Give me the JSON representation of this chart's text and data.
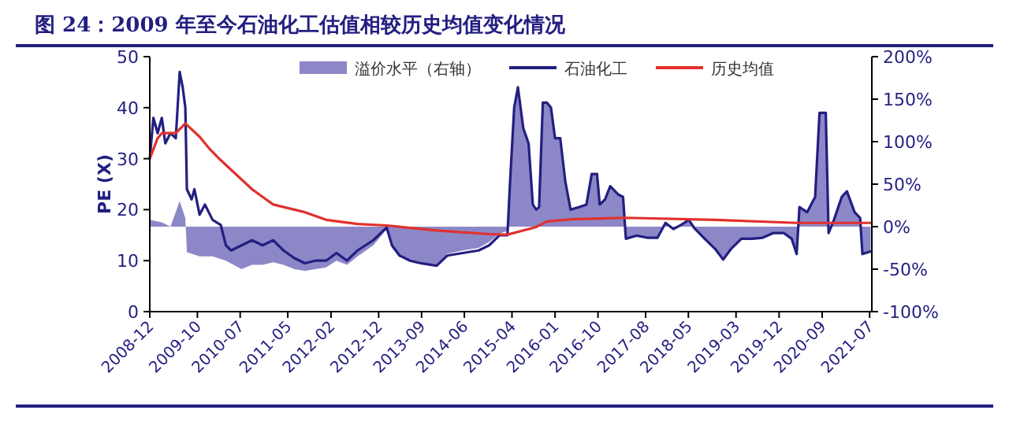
{
  "chart_data": {
    "type": "line",
    "title": "图 24：2009 年至今石油化工估值相较历史均值变化情况",
    "ylabel": "PE (X)",
    "legend": "top",
    "grid": false,
    "xlim": [
      "2008-12-01",
      "2021-07-15"
    ],
    "xticks": [
      "2008-12",
      "2009-10",
      "2010-07",
      "2011-05",
      "2012-02",
      "2012-12",
      "2013-09",
      "2014-06",
      "2015-04",
      "2016-01",
      "2016-10",
      "2017-08",
      "2018-05",
      "2019-03",
      "2019-12",
      "2020-09",
      "2021-07"
    ],
    "ylim": [
      0,
      50
    ],
    "yticks": [
      0,
      10,
      20,
      30,
      40,
      50
    ],
    "y2lim": [
      -100,
      200
    ],
    "y2ticks": [
      {
        "value": -100,
        "label": "-100%"
      },
      {
        "value": -50,
        "label": "-50%"
      },
      {
        "value": 0,
        "label": "0%"
      },
      {
        "value": 50,
        "label": "50%"
      },
      {
        "value": 100,
        "label": "100%"
      },
      {
        "value": 150,
        "label": "150%"
      },
      {
        "value": 200,
        "label": "200%"
      }
    ],
    "series": [
      {
        "name": "溢价水平（右轴）",
        "type": "area",
        "axis": "y2",
        "color": "#8c88c8",
        "x": [
          "2008-12-01",
          "2009-02-16",
          "2009-04-12",
          "2009-06-10",
          "2009-07-16",
          "2009-07-26",
          "2009-10-15",
          "2010-01-06",
          "2010-04-01",
          "2010-07-10",
          "2010-09-15",
          "2010-11-21",
          "2011-01-28",
          "2011-04-04",
          "2011-06-12",
          "2011-08-18",
          "2011-10-24",
          "2012-01-01",
          "2012-03-07",
          "2012-05-13",
          "2012-07-19",
          "2012-10-28",
          "2013-01-21",
          "2013-02-24",
          "2013-04-13",
          "2013-06-19",
          "2013-08-25",
          "2013-12-06",
          "2014-02-12",
          "2014-05-22",
          "2014-08-31",
          "2014-11-06",
          "2015-01-12",
          "2015-03-03",
          "2015-03-19",
          "2015-04-15",
          "2015-05-09",
          "2015-06-12",
          "2015-07-16",
          "2015-08-12",
          "2015-09-03",
          "2015-09-21",
          "2015-10-15",
          "2015-11-09",
          "2015-12-06",
          "2016-01-01",
          "2016-02-03",
          "2016-03-06",
          "2016-04-09",
          "2016-06-01",
          "2016-07-19",
          "2016-08-22",
          "2016-09-25",
          "2016-10-12",
          "2016-11-15",
          "2016-12-18",
          "2017-02-06",
          "2017-03-10",
          "2017-03-28",
          "2017-06-03",
          "2017-08-10",
          "2017-10-16",
          "2017-12-06",
          "2018-01-25",
          "2018-03-15",
          "2018-05-04",
          "2018-06-07",
          "2018-08-13",
          "2018-10-19",
          "2018-12-09",
          "2019-01-28",
          "2019-04-04",
          "2019-06-12",
          "2019-08-18",
          "2019-10-24",
          "2020-01-01",
          "2020-02-19",
          "2020-03-22",
          "2020-04-09",
          "2020-05-28",
          "2020-07-18",
          "2020-08-15",
          "2020-09-24",
          "2020-10-12",
          "2020-11-15",
          "2021-01-04",
          "2021-02-06",
          "2021-03-27",
          "2021-05-01",
          "2021-05-16",
          "2021-07-07"
        ],
        "values": [
          8,
          5,
          0,
          30,
          10,
          -30,
          -35,
          -35,
          -40,
          -50,
          -45,
          -45,
          -42,
          -45,
          -50,
          -52,
          -50,
          -48,
          -40,
          -45,
          -35,
          -22,
          -3,
          -25,
          -35,
          -40,
          -42,
          -45,
          -32,
          -28,
          -25,
          -18,
          -8,
          -5,
          50,
          140,
          165,
          115,
          100,
          25,
          20,
          22,
          145,
          145,
          140,
          105,
          105,
          55,
          20,
          22,
          25,
          62,
          62,
          25,
          32,
          48,
          38,
          35,
          -14,
          -10,
          -12,
          -12,
          5,
          -2,
          3,
          9,
          -1,
          -14,
          -26,
          -38,
          -26,
          -14,
          -14,
          -12,
          -7,
          -7,
          -14,
          -32,
          24,
          18,
          36,
          135,
          135,
          -7,
          9,
          36,
          43,
          18,
          11,
          -32,
          -29
        ]
      },
      {
        "name": "石油化工",
        "color": "#231f80",
        "x": [
          "2008-12-01",
          "2008-12-24",
          "2009-01-20",
          "2009-02-16",
          "2009-03-10",
          "2009-04-12",
          "2009-05-16",
          "2009-06-10",
          "2009-06-29",
          "2009-07-16",
          "2009-07-26",
          "2009-08-25",
          "2009-09-12",
          "2009-10-15",
          "2009-11-18",
          "2010-01-06",
          "2010-02-27",
          "2010-04-01",
          "2010-05-04",
          "2010-07-10",
          "2010-09-15",
          "2010-11-21",
          "2011-01-28",
          "2011-04-04",
          "2011-06-12",
          "2011-08-18",
          "2011-10-24",
          "2012-01-01",
          "2012-03-07",
          "2012-05-13",
          "2012-07-19",
          "2012-10-28",
          "2013-01-21",
          "2013-02-24",
          "2013-04-13",
          "2013-06-19",
          "2013-08-25",
          "2013-12-06",
          "2014-02-12",
          "2014-05-22",
          "2014-08-31",
          "2014-11-06",
          "2015-01-12",
          "2015-03-03",
          "2015-03-19",
          "2015-04-15",
          "2015-05-09",
          "2015-06-12",
          "2015-07-16",
          "2015-08-12",
          "2015-09-03",
          "2015-09-21",
          "2015-10-15",
          "2015-11-09",
          "2015-12-06",
          "2016-01-01",
          "2016-02-03",
          "2016-03-06",
          "2016-04-09",
          "2016-06-01",
          "2016-07-19",
          "2016-08-22",
          "2016-09-25",
          "2016-10-12",
          "2016-11-15",
          "2016-12-18",
          "2017-02-06",
          "2017-03-10",
          "2017-03-28",
          "2017-06-03",
          "2017-08-10",
          "2017-10-16",
          "2017-12-06",
          "2018-01-25",
          "2018-03-15",
          "2018-05-04",
          "2018-06-07",
          "2018-08-13",
          "2018-10-19",
          "2018-12-09",
          "2019-01-28",
          "2019-04-04",
          "2019-06-12",
          "2019-08-18",
          "2019-10-24",
          "2020-01-01",
          "2020-02-19",
          "2020-03-22",
          "2020-04-09",
          "2020-05-28",
          "2020-07-18",
          "2020-08-15",
          "2020-09-24",
          "2020-10-12",
          "2020-11-15",
          "2021-01-04",
          "2021-02-06",
          "2021-03-27",
          "2021-05-01",
          "2021-05-16",
          "2021-07-07"
        ],
        "values": [
          30,
          38,
          35,
          38,
          33,
          35,
          34,
          47,
          44,
          40,
          24,
          22,
          24,
          19,
          21,
          18,
          17,
          13,
          12,
          13,
          14,
          13,
          14,
          12,
          10.5,
          9.5,
          10,
          10,
          11.5,
          10,
          12,
          14,
          16.5,
          13,
          11,
          10,
          9.5,
          9,
          11,
          11.5,
          12,
          13,
          15,
          15,
          25,
          40,
          44,
          36,
          33,
          21,
          20,
          20.5,
          41,
          41,
          40,
          34,
          34,
          25.6,
          20,
          20.5,
          21,
          27,
          27,
          21,
          22,
          24.6,
          23,
          22.5,
          14.3,
          14.9,
          14.5,
          14.5,
          17.4,
          16.2,
          17,
          18,
          16.4,
          14.3,
          12.3,
          10.2,
          12.3,
          14.3,
          14.3,
          14.5,
          15.4,
          15.4,
          14.3,
          11.3,
          20.5,
          19.5,
          22.5,
          39,
          39,
          15.4,
          18,
          22.5,
          23.6,
          19.5,
          18.4,
          11.3,
          11.8
        ]
      },
      {
        "name": "历史均值",
        "color": "#e0312d",
        "x": [
          "2008-12-01",
          "2009-01-20",
          "2009-02-16",
          "2009-05-16",
          "2009-07-16",
          "2009-10-15",
          "2009-12-21",
          "2010-02-27",
          "2010-09-15",
          "2011-01-28",
          "2011-08-18",
          "2012-01-01",
          "2012-07-19",
          "2013-01-21",
          "2013-12-06",
          "2014-11-06",
          "2015-03-03",
          "2015-09-03",
          "2015-11-09",
          "2016-04-09",
          "2017-03-28",
          "2018-10-19",
          "2020-03-22",
          "2021-07-07"
        ],
        "values": [
          30,
          34,
          35,
          35,
          36.9,
          34.3,
          31.8,
          29.7,
          24,
          21,
          19.5,
          18,
          17.2,
          16.9,
          15.9,
          15.2,
          15.1,
          16.6,
          17.7,
          18.1,
          18.4,
          18,
          17.4,
          17.4
        ]
      }
    ]
  }
}
